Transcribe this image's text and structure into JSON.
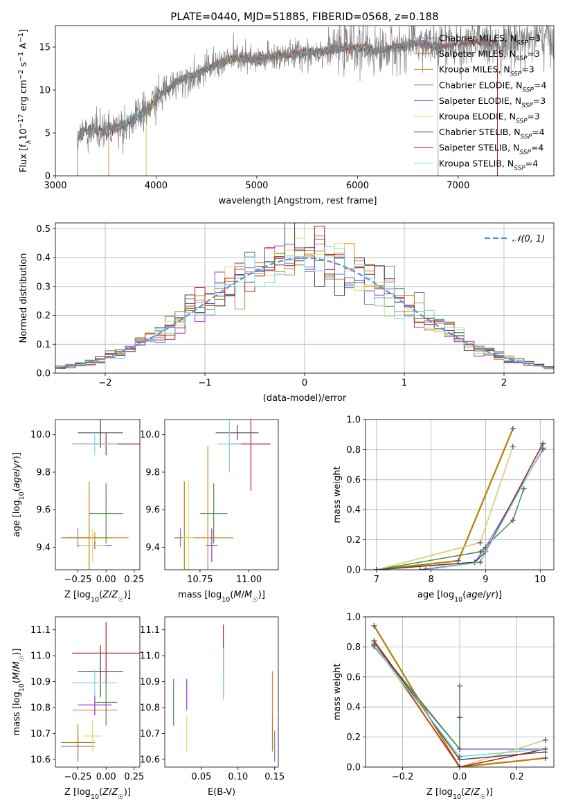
{
  "title": "PLATE=0440, MJD=51885, FIBERID=0568, z=0.188",
  "colors": {
    "Chabrier MILES": "#6f7fd6",
    "Salpeter MILES": "#e08030",
    "Kroupa MILES": "#b8860b",
    "Chabrier ELODIE": "#4a8a4a",
    "Salpeter ELODIE": "#9932cc",
    "Kroupa ELODIE": "#d8e060",
    "Chabrier STELIB": "#444444",
    "Salpeter STELIB": "#b22222",
    "Kroupa STELIB": "#80d0e0"
  },
  "legend_entries": [
    {
      "name": "Chabrier MILES",
      "suffix": "=3",
      "series": "Chabrier MILES"
    },
    {
      "name": "Salpeter MILES",
      "suffix": "=3",
      "series": "Salpeter MILES"
    },
    {
      "name": "Kroupa MILES",
      "suffix": "=3",
      "series": "Kroupa MILES"
    },
    {
      "name": "Chabrier ELODIE",
      "suffix": "=4",
      "series": "Chabrier ELODIE"
    },
    {
      "name": "Salpeter ELODIE",
      "suffix": "=3",
      "series": "Salpeter ELODIE"
    },
    {
      "name": "Kroupa ELODIE",
      "suffix": "=3",
      "series": "Kroupa ELODIE"
    },
    {
      "name": "Chabrier STELIB",
      "suffix": "=4",
      "series": "Chabrier STELIB"
    },
    {
      "name": "Salpeter STELIB",
      "suffix": "=4",
      "series": "Salpeter STELIB"
    },
    {
      "name": "Kroupa STELIB",
      "suffix": "=4",
      "series": "Kroupa STELIB"
    }
  ],
  "chart_data": [
    {
      "id": "spectrum",
      "type": "line",
      "xlabel": "wavelength [Angstrom, rest frame]",
      "ylabel": "Flux [f_λ10^-17 erg cm^-2 s^-1 A^-1]",
      "xlim": [
        3000,
        7950
      ],
      "ylim": [
        0,
        17.5
      ],
      "xticks": [
        3000,
        4000,
        5000,
        6000,
        7000
      ],
      "yticks": [
        0,
        5,
        10,
        15
      ],
      "legend": "upper-right",
      "data_curve": {
        "x": [
          3220,
          3300,
          3500,
          3700,
          3900,
          4000,
          4200,
          4400,
          4600,
          4800,
          5000,
          5200,
          5400,
          5600,
          5800,
          6000,
          6200,
          6400,
          6600,
          6800,
          7000,
          7200,
          7400,
          7600,
          7800
        ],
        "y": [
          4.5,
          5.3,
          5.3,
          6.0,
          7.5,
          9.0,
          11.0,
          11.8,
          13.0,
          13.8,
          13.4,
          14.0,
          14.2,
          14.5,
          14.8,
          15.0,
          14.5,
          15.0,
          15.5,
          15.0,
          15.3,
          15.6,
          15.4,
          15.8,
          16.0
        ]
      },
      "model_start": {
        "Chabrier MILES": 3530,
        "Salpeter MILES": 3530,
        "Kroupa MILES": 3900,
        "Chabrier ELODIE": 3900,
        "Salpeter ELODIE": 3900,
        "Kroupa ELODIE": 3900,
        "Chabrier STELIB": 3220,
        "Salpeter STELIB": 3220,
        "Kroupa STELIB": 3220
      },
      "model_end": {
        "Chabrier MILES": 7390,
        "Salpeter MILES": 7390,
        "Kroupa MILES": 6800,
        "Chabrier ELODIE": 6800,
        "Salpeter ELODIE": 6800,
        "Kroupa ELODIE": 6800,
        "Chabrier STELIB": 7390,
        "Salpeter STELIB": 7390,
        "Kroupa STELIB": 6800
      }
    },
    {
      "id": "residuals",
      "type": "line",
      "xlabel": "(data-model)/error",
      "ylabel": "Normed distribution",
      "xlim": [
        -2.5,
        2.5
      ],
      "ylim": [
        0,
        0.52
      ],
      "xticks": [
        -2,
        -1,
        0,
        1,
        2
      ],
      "yticks": [
        0.0,
        0.1,
        0.2,
        0.3,
        0.4,
        0.5
      ],
      "grid": true,
      "legend": "upper-right",
      "gaussian_label": "𝒩(0, 1)",
      "bin_width": 0.1
    },
    {
      "id": "age_vs_Z",
      "type": "scatter",
      "xlabel": "Z [log10(Z/Z☉)]",
      "ylabel": "age  [log10(age/yr)]",
      "xlim": [
        -0.45,
        0.3
      ],
      "ylim": [
        9.28,
        10.08
      ],
      "xticks": [
        -0.25,
        0.0,
        0.25
      ],
      "yticks": [
        9.4,
        9.6,
        9.8,
        10.0
      ],
      "points": [
        {
          "series": "Chabrier MILES",
          "x": -0.25,
          "y": 9.45,
          "xerr": 0.15,
          "yerr": 0.05
        },
        {
          "series": "Salpeter MILES",
          "x": -0.1,
          "y": 9.45,
          "xerr": 0.3,
          "yerr": 0.03
        },
        {
          "series": "Kroupa MILES",
          "x": -0.15,
          "y": 9.45,
          "xerr": 0.2,
          "yerr": 0.3
        },
        {
          "series": "Chabrier ELODIE",
          "x": 0.0,
          "y": 9.58,
          "xerr": 0.15,
          "yerr": 0.16
        },
        {
          "series": "Salpeter ELODIE",
          "x": -0.1,
          "y": 9.41,
          "xerr": 0.15,
          "yerr": 0.02
        },
        {
          "series": "Kroupa ELODIE",
          "x": -0.12,
          "y": 9.41,
          "xerr": 0.12,
          "yerr": 0.09
        },
        {
          "series": "Chabrier STELIB",
          "x": -0.05,
          "y": 10.01,
          "xerr": 0.2,
          "yerr": 0.08
        },
        {
          "series": "Salpeter STELIB",
          "x": 0.0,
          "y": 9.95,
          "xerr": 0.3,
          "yerr": 0.06
        },
        {
          "series": "Kroupa STELIB",
          "x": -0.1,
          "y": 9.95,
          "xerr": 0.2,
          "yerr": 0.06
        }
      ]
    },
    {
      "id": "age_vs_mass",
      "type": "scatter",
      "xlabel": "mass [log10(M/M☉)]",
      "ylabel": "",
      "xlim": [
        10.57,
        11.15
      ],
      "ylim": [
        9.28,
        10.08
      ],
      "xticks": [
        10.75,
        11.0
      ],
      "yticks": [
        9.4,
        9.6,
        9.8,
        10.0
      ],
      "points": [
        {
          "series": "Chabrier MILES",
          "x": 10.65,
          "y": 9.45,
          "xerr": 0.03,
          "yerr": 0.05
        },
        {
          "series": "Salpeter MILES",
          "x": 10.79,
          "y": 9.45,
          "xerr": 0.13,
          "yerr": 0.49
        },
        {
          "series": "Kroupa MILES",
          "x": 10.67,
          "y": 9.45,
          "xerr": 0.05,
          "yerr": 0.3
        },
        {
          "series": "Chabrier ELODIE",
          "x": 10.82,
          "y": 9.58,
          "xerr": 0.07,
          "yerr": 0.16
        },
        {
          "series": "Salpeter ELODIE",
          "x": 10.81,
          "y": 9.41,
          "xerr": 0.03,
          "yerr": 0.09
        },
        {
          "series": "Kroupa ELODIE",
          "x": 10.69,
          "y": 9.45,
          "xerr": 0.03,
          "yerr": 0.31
        },
        {
          "series": "Chabrier STELIB",
          "x": 10.94,
          "y": 10.01,
          "xerr": 0.11,
          "yerr": 0.04
        },
        {
          "series": "Salpeter STELIB",
          "x": 11.01,
          "y": 9.95,
          "xerr": 0.1,
          "yerr": 0.25
        },
        {
          "series": "Kroupa STELIB",
          "x": 10.9,
          "y": 9.95,
          "xerr": 0.06,
          "yerr": 0.15
        }
      ]
    },
    {
      "id": "weight_vs_age",
      "type": "line",
      "xlabel": "age  [log10(age/yr)]",
      "ylabel": "mass weight",
      "xlim": [
        6.8,
        10.25
      ],
      "ylim": [
        0,
        1.0
      ],
      "xticks": [
        7,
        8,
        9,
        10
      ],
      "yticks": [
        0.0,
        0.2,
        0.4,
        0.6,
        0.8,
        1.0
      ],
      "grid": true,
      "series": [
        {
          "name": "Chabrier MILES",
          "x": [
            7.0,
            8.8,
            9.0,
            10.05
          ],
          "y": [
            0.0,
            0.05,
            0.15,
            0.8
          ]
        },
        {
          "name": "Salpeter MILES",
          "x": [
            7.0,
            8.5,
            9.5
          ],
          "y": [
            0.0,
            0.06,
            0.94
          ]
        },
        {
          "name": "Kroupa MILES",
          "x": [
            7.0,
            8.5,
            9.5
          ],
          "y": [
            0.0,
            0.06,
            0.94
          ]
        },
        {
          "name": "Chabrier ELODIE",
          "x": [
            7.0,
            8.9,
            9.5,
            9.7
          ],
          "y": [
            0.0,
            0.12,
            0.33,
            0.54
          ]
        },
        {
          "name": "Salpeter ELODIE",
          "x": [
            7.0,
            8.9,
            9.5
          ],
          "y": [
            0.0,
            0.18,
            0.82
          ]
        },
        {
          "name": "Kroupa ELODIE",
          "x": [
            7.0,
            8.9,
            9.5
          ],
          "y": [
            0.0,
            0.18,
            0.82
          ]
        },
        {
          "name": "Chabrier STELIB",
          "x": [
            7.0,
            8.8,
            9.0,
            10.05
          ],
          "y": [
            0.0,
            0.05,
            0.12,
            0.84
          ]
        },
        {
          "name": "Salpeter STELIB",
          "x": [
            7.8,
            8.9,
            10.05
          ],
          "y": [
            0.0,
            0.05,
            0.84
          ]
        },
        {
          "name": "Kroupa STELIB",
          "x": [
            7.9,
            8.9,
            10.05
          ],
          "y": [
            0.0,
            0.05,
            0.81
          ]
        }
      ]
    },
    {
      "id": "mass_vs_Z",
      "type": "scatter",
      "xlabel": "Z [log10(Z/Z☉)]",
      "ylabel": "mass [log10(M/M☉)]",
      "xlim": [
        -0.45,
        0.3
      ],
      "ylim": [
        10.57,
        11.15
      ],
      "xticks": [
        -0.25,
        0.0,
        0.25
      ],
      "yticks": [
        10.6,
        10.7,
        10.8,
        10.9,
        11.0,
        11.1
      ],
      "points": [
        {
          "series": "Chabrier MILES",
          "x": -0.25,
          "y": 10.65,
          "xerr": 0.15,
          "yerr": 0.06
        },
        {
          "series": "Salpeter MILES",
          "x": -0.1,
          "y": 10.79,
          "xerr": 0.2,
          "yerr": 0.02
        },
        {
          "series": "Kroupa MILES",
          "x": -0.25,
          "y": 10.665,
          "xerr": 0.15,
          "yerr": 0.07
        },
        {
          "series": "Chabrier ELODIE",
          "x": 0.0,
          "y": 10.82,
          "xerr": 0.1,
          "yerr": 0.09
        },
        {
          "series": "Salpeter ELODIE",
          "x": -0.1,
          "y": 10.81,
          "xerr": 0.15,
          "yerr": 0.04
        },
        {
          "series": "Kroupa ELODIE",
          "x": -0.12,
          "y": 10.69,
          "xerr": 0.08,
          "yerr": 0.06
        },
        {
          "series": "Chabrier STELIB",
          "x": -0.05,
          "y": 10.94,
          "xerr": 0.2,
          "yerr": 0.1
        },
        {
          "series": "Salpeter STELIB",
          "x": 0.0,
          "y": 11.01,
          "xerr": 0.3,
          "yerr": 0.12
        },
        {
          "series": "Kroupa STELIB",
          "x": -0.1,
          "y": 10.895,
          "xerr": 0.2,
          "yerr": 0.05
        }
      ]
    },
    {
      "id": "mass_vs_ebv",
      "type": "scatter",
      "xlabel": "E(B-V)",
      "ylabel": "",
      "xlim": [
        0.0,
        0.155
      ],
      "ylim": [
        10.57,
        11.15
      ],
      "xticks": [
        0.05,
        0.1,
        0.15
      ],
      "yticks": [
        10.6,
        10.7,
        10.8,
        10.9,
        11.0,
        11.1
      ],
      "points": [
        {
          "series": "Chabrier MILES",
          "x": 0.15,
          "y": 10.65,
          "xerr": 0,
          "yerr": 0.06
        },
        {
          "series": "Salpeter MILES",
          "x": 0.147,
          "y": 10.79,
          "xerr": 0,
          "yerr": 0.15
        },
        {
          "series": "Kroupa MILES",
          "x": 0.147,
          "y": 10.7,
          "xerr": 0,
          "yerr": 0.07
        },
        {
          "series": "Chabrier ELODIE",
          "x": 0.012,
          "y": 10.82,
          "xerr": 0,
          "yerr": 0.09
        },
        {
          "series": "Salpeter ELODIE",
          "x": 0.03,
          "y": 10.85,
          "xerr": 0,
          "yerr": 0.06
        },
        {
          "series": "Kroupa ELODIE",
          "x": 0.03,
          "y": 10.7,
          "xerr": 0,
          "yerr": 0.07
        },
        {
          "series": "Chabrier STELIB",
          "x": 0.08,
          "y": 10.94,
          "xerr": 0,
          "yerr": 0.1
        },
        {
          "series": "Salpeter STELIB",
          "x": 0.08,
          "y": 11.02,
          "xerr": 0,
          "yerr": 0.1
        },
        {
          "series": "Kroupa STELIB",
          "x": 0.08,
          "y": 10.93,
          "xerr": 0,
          "yerr": 0.1
        }
      ]
    },
    {
      "id": "weight_vs_Z",
      "type": "line",
      "xlabel": "Z [log10(Z/Z☉)]",
      "ylabel": "mass weight",
      "xlim": [
        -0.33,
        0.33
      ],
      "ylim": [
        0,
        1.0
      ],
      "xticks": [
        -0.2,
        0.0,
        0.2
      ],
      "yticks": [
        0.0,
        0.2,
        0.4,
        0.6,
        0.8,
        1.0
      ],
      "grid": true,
      "series": [
        {
          "name": "Chabrier MILES",
          "x": [
            -0.3,
            0.0,
            0.3
          ],
          "y": [
            0.8,
            0.12,
            0.12
          ]
        },
        {
          "name": "Salpeter MILES",
          "x": [
            -0.3,
            0.0,
            0.3
          ],
          "y": [
            0.94,
            0.0,
            0.06
          ]
        },
        {
          "name": "Kroupa MILES",
          "x": [
            -0.3,
            0.0,
            0.3
          ],
          "y": [
            0.94,
            0.0,
            0.06
          ]
        },
        {
          "name": "Chabrier ELODIE",
          "x": [
            -0.3,
            0.0,
            0.0,
            0.0
          ],
          "y": [
            0.82,
            0.12,
            0.33,
            0.54
          ]
        },
        {
          "name": "Salpeter ELODIE",
          "x": [
            -0.3,
            0.0,
            0.3
          ],
          "y": [
            0.82,
            0.0,
            0.18
          ]
        },
        {
          "name": "Kroupa ELODIE",
          "x": [
            -0.3,
            0.0,
            0.3
          ],
          "y": [
            0.82,
            0.0,
            0.18
          ]
        },
        {
          "name": "Chabrier STELIB",
          "x": [
            -0.3,
            0.0,
            0.3
          ],
          "y": [
            0.84,
            0.05,
            0.1
          ]
        },
        {
          "name": "Salpeter STELIB",
          "x": [
            -0.3,
            0.0,
            0.3
          ],
          "y": [
            0.84,
            0.0,
            0.12
          ]
        },
        {
          "name": "Kroupa STELIB",
          "x": [
            -0.3,
            0.0,
            0.3
          ],
          "y": [
            0.81,
            0.07,
            0.12
          ]
        }
      ]
    }
  ]
}
